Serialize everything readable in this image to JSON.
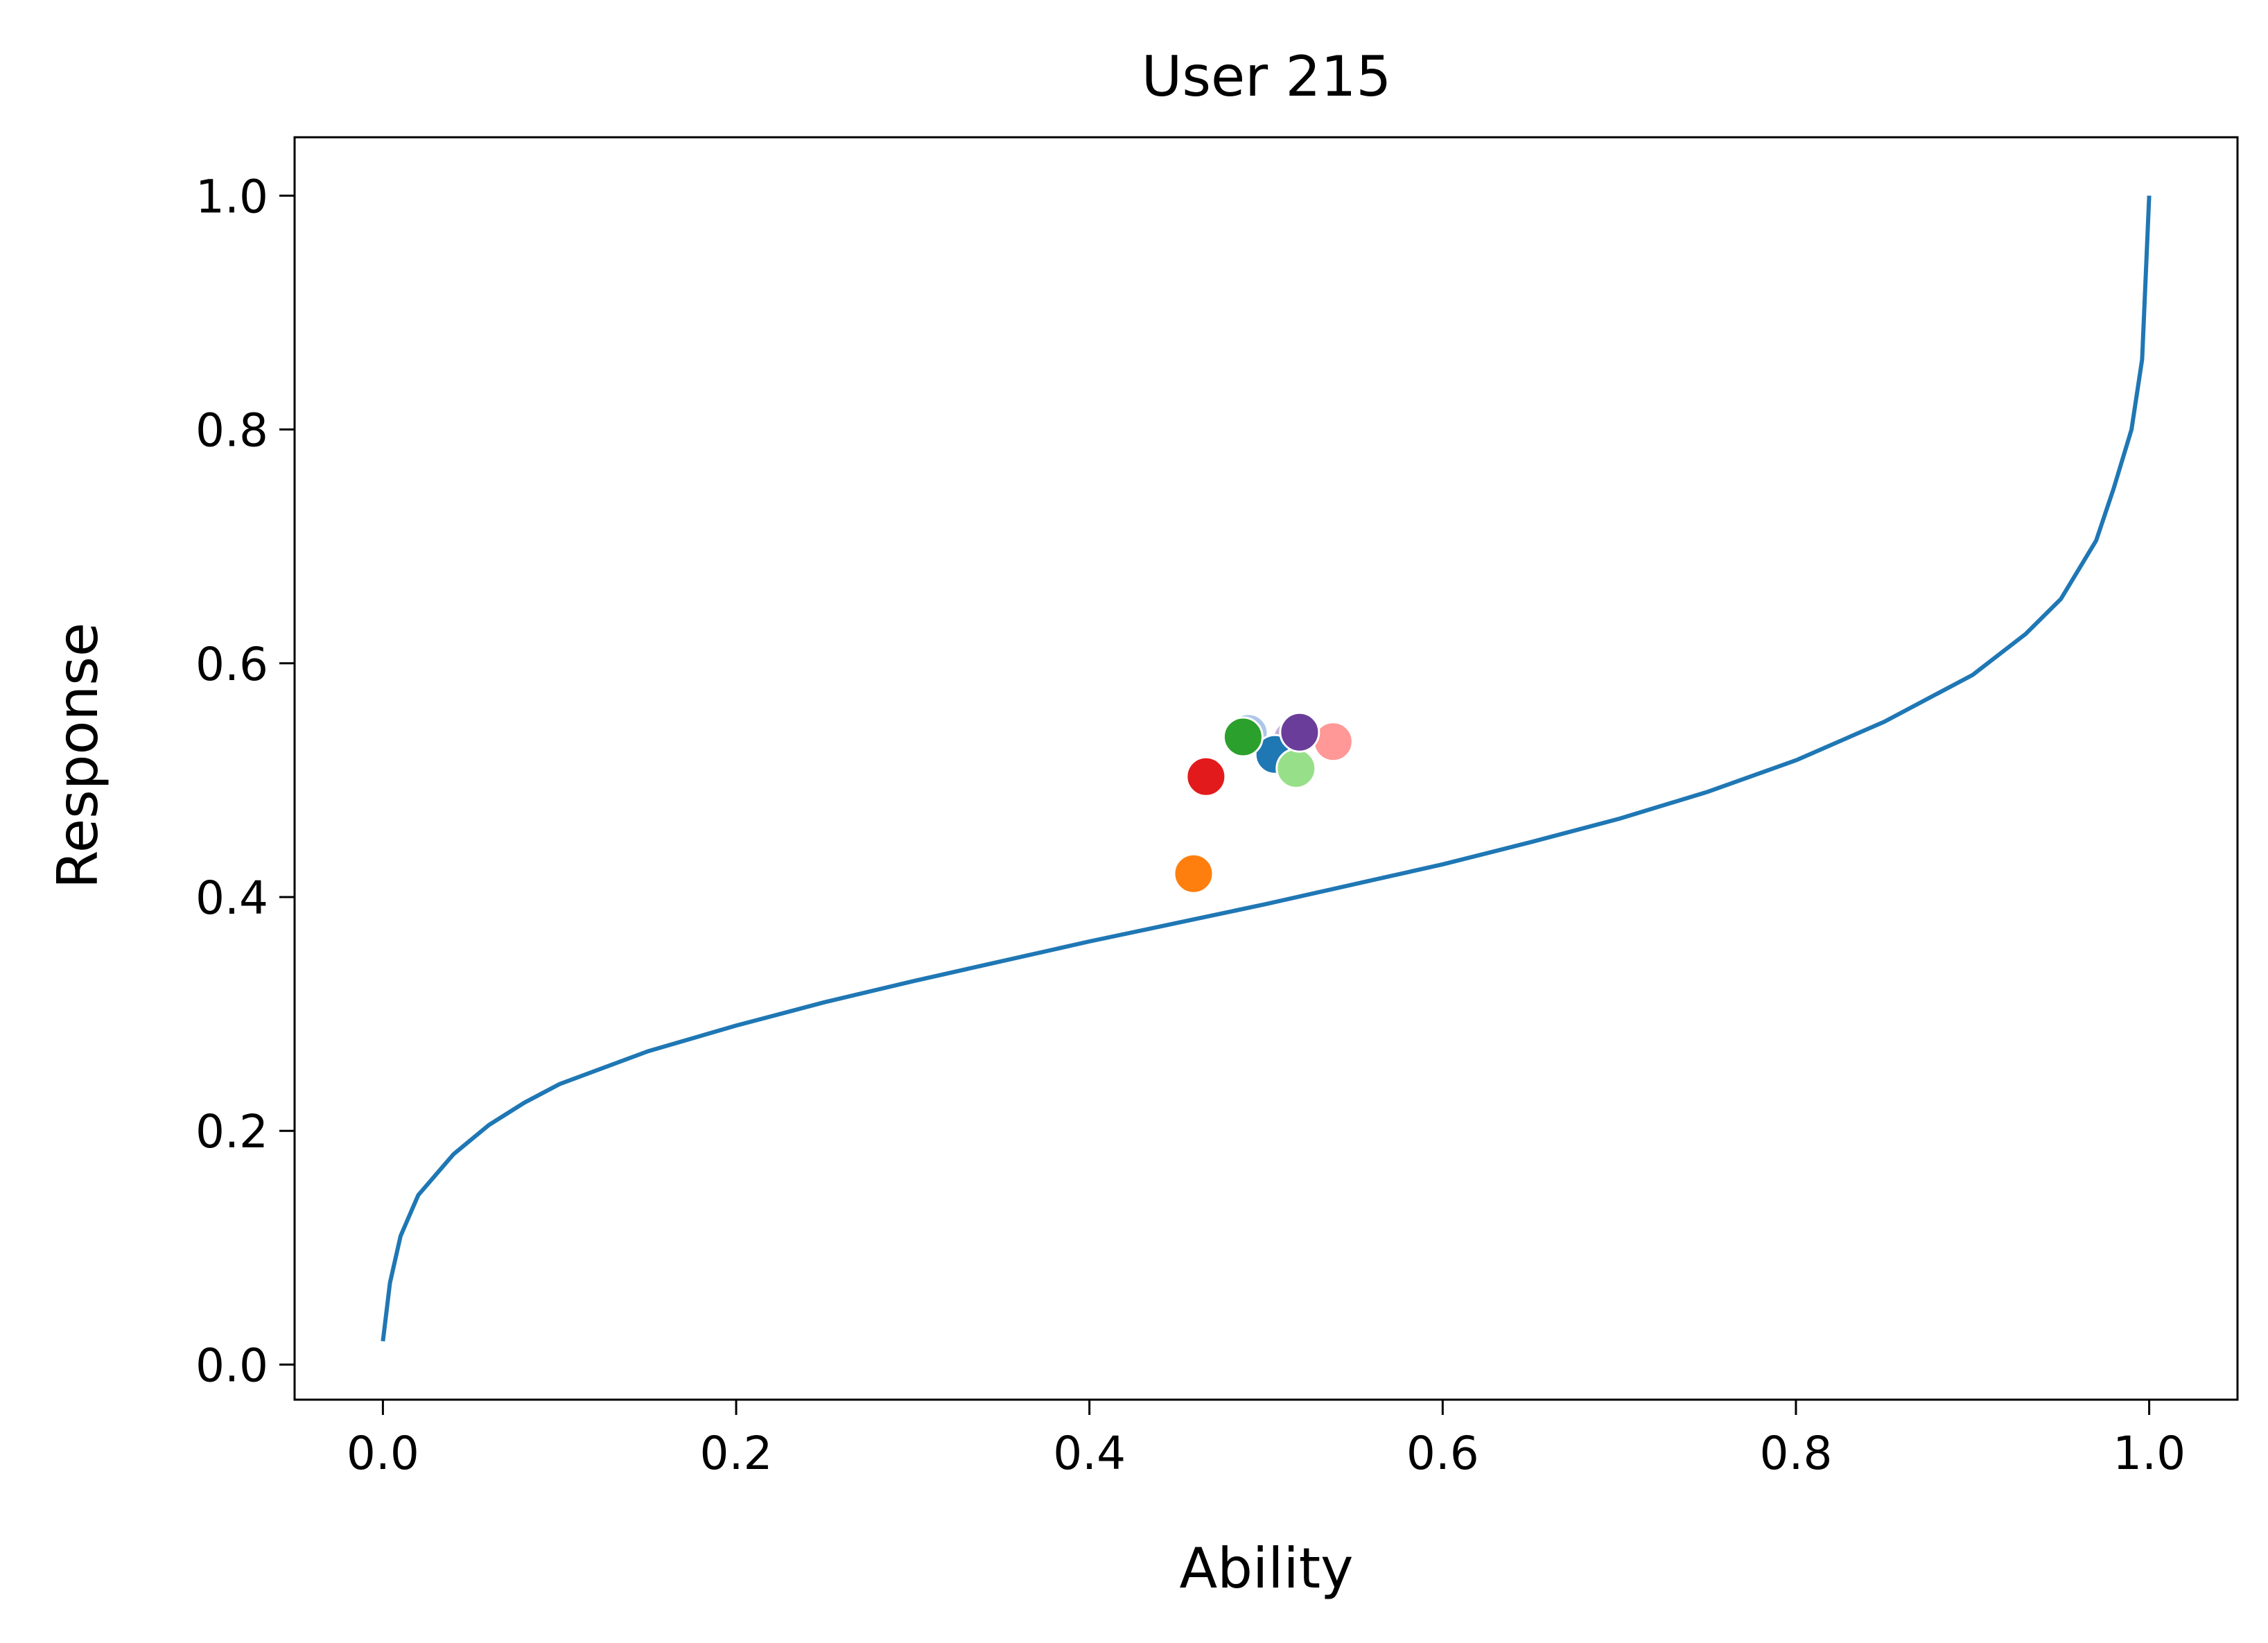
{
  "chart_data": {
    "type": "scatter",
    "title": "User 215",
    "xlabel": "Ability",
    "ylabel": "Response",
    "xlim": [
      -0.05,
      1.05
    ],
    "ylim": [
      -0.03,
      1.05
    ],
    "xticks": [
      0.0,
      0.2,
      0.4,
      0.6,
      0.8,
      1.0
    ],
    "yticks": [
      0.0,
      0.2,
      0.4,
      0.6,
      0.8,
      1.0
    ],
    "xtick_labels": [
      "0.0",
      "0.2",
      "0.4",
      "0.6",
      "0.8",
      "1.0"
    ],
    "ytick_labels": [
      "0.0",
      "0.2",
      "0.4",
      "0.6",
      "0.8",
      "1.0"
    ],
    "grid": false,
    "curve": {
      "color": "#1f77b4",
      "x": [
        0.0,
        0.004,
        0.01,
        0.02,
        0.04,
        0.06,
        0.08,
        0.1,
        0.15,
        0.2,
        0.25,
        0.3,
        0.35,
        0.4,
        0.45,
        0.5,
        0.55,
        0.6,
        0.65,
        0.7,
        0.75,
        0.8,
        0.85,
        0.9,
        0.93,
        0.95,
        0.97,
        0.98,
        0.99,
        0.996,
        1.0
      ],
      "y": [
        0.02,
        0.07,
        0.11,
        0.145,
        0.18,
        0.205,
        0.224,
        0.24,
        0.268,
        0.29,
        0.31,
        0.328,
        0.345,
        0.362,
        0.378,
        0.394,
        0.411,
        0.428,
        0.447,
        0.467,
        0.49,
        0.517,
        0.55,
        0.59,
        0.625,
        0.655,
        0.705,
        0.75,
        0.8,
        0.86,
        1.0
      ]
    },
    "points": [
      {
        "x": 0.515,
        "y": 0.535,
        "color": "#c5b0d5"
      },
      {
        "x": 0.49,
        "y": 0.54,
        "color": "#aec7e8"
      },
      {
        "x": 0.505,
        "y": 0.522,
        "color": "#1f77b4"
      },
      {
        "x": 0.538,
        "y": 0.533,
        "color": "#ff9896"
      },
      {
        "x": 0.517,
        "y": 0.51,
        "color": "#98df8a"
      },
      {
        "x": 0.466,
        "y": 0.503,
        "color": "#e31a1c"
      },
      {
        "x": 0.459,
        "y": 0.42,
        "color": "#ff7f0e"
      },
      {
        "x": 0.487,
        "y": 0.537,
        "color": "#2ca02c"
      },
      {
        "x": 0.519,
        "y": 0.541,
        "color": "#6a3d9a"
      }
    ]
  }
}
